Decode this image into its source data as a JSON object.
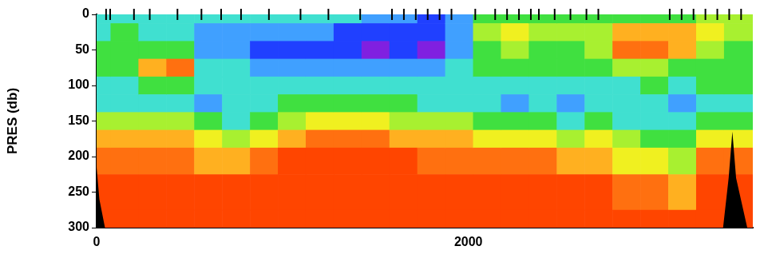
{
  "chart_data": {
    "type": "heatmap",
    "y_label": "PRES (db)",
    "xlim": [
      0,
      3530
    ],
    "xticks": [
      0,
      2000
    ],
    "ylim": [
      0,
      300
    ],
    "yticks": [
      0,
      50,
      100,
      150,
      200,
      250,
      300
    ],
    "grid": false,
    "zlim": [
      1,
      10
    ],
    "x": [
      0,
      150,
      300,
      450,
      600,
      750,
      900,
      1050,
      1200,
      1350,
      1500,
      1650,
      1800,
      1950,
      2100,
      2250,
      2400,
      2550,
      2700,
      2850,
      3000,
      3150,
      3300,
      3450
    ],
    "pres": [
      0,
      25,
      50,
      75,
      100,
      125,
      150,
      175,
      200,
      250,
      300
    ],
    "cells": [
      [
        4,
        4,
        5,
        5,
        4,
        4,
        6,
        8,
        9,
        10,
        10
      ],
      [
        4,
        5,
        5,
        5,
        4,
        4,
        6,
        8,
        9,
        10,
        10
      ],
      [
        4,
        4,
        5,
        8,
        5,
        4,
        6,
        8,
        9,
        10,
        10
      ],
      [
        4,
        4,
        5,
        9,
        5,
        4,
        6,
        8,
        9,
        10,
        10
      ],
      [
        4,
        3,
        3,
        4,
        4,
        3,
        5,
        7,
        8,
        10,
        10
      ],
      [
        4,
        3,
        3,
        4,
        4,
        4,
        4,
        6,
        8,
        10,
        10
      ],
      [
        4,
        3,
        2,
        3,
        4,
        4,
        5,
        7,
        9,
        10,
        10
      ],
      [
        4,
        3,
        2,
        3,
        4,
        5,
        6,
        8,
        10,
        10,
        10
      ],
      [
        4,
        3,
        2,
        3,
        4,
        5,
        7,
        9,
        10,
        10,
        10
      ],
      [
        4,
        2,
        2,
        3,
        4,
        5,
        7,
        9,
        10,
        10,
        10
      ],
      [
        3,
        2,
        1,
        3,
        4,
        5,
        7,
        9,
        10,
        10,
        10
      ],
      [
        3,
        2,
        2,
        3,
        4,
        5,
        6,
        8,
        10,
        10,
        10
      ],
      [
        2,
        2,
        1,
        3,
        4,
        4,
        6,
        8,
        9,
        10,
        10
      ],
      [
        3,
        3,
        3,
        4,
        4,
        4,
        6,
        8,
        9,
        10,
        10
      ],
      [
        5,
        6,
        5,
        5,
        4,
        4,
        5,
        7,
        9,
        10,
        10
      ],
      [
        5,
        7,
        6,
        5,
        4,
        3,
        5,
        7,
        9,
        10,
        10
      ],
      [
        5,
        6,
        5,
        5,
        4,
        4,
        5,
        7,
        9,
        10,
        10
      ],
      [
        5,
        6,
        5,
        5,
        4,
        3,
        4,
        6,
        8,
        10,
        10
      ],
      [
        5,
        6,
        6,
        5,
        4,
        4,
        5,
        7,
        8,
        10,
        10
      ],
      [
        5,
        8,
        9,
        6,
        4,
        4,
        4,
        6,
        7,
        9,
        10
      ],
      [
        5,
        8,
        9,
        6,
        5,
        4,
        4,
        5,
        7,
        9,
        10
      ],
      [
        5,
        8,
        8,
        5,
        4,
        3,
        4,
        5,
        6,
        8,
        10
      ],
      [
        6,
        7,
        6,
        5,
        5,
        4,
        5,
        7,
        9,
        10,
        10
      ],
      [
        6,
        6,
        5,
        5,
        5,
        4,
        5,
        7,
        9,
        10,
        10
      ]
    ],
    "stations": [
      51,
      73,
      201,
      286,
      435,
      564,
      670,
      777,
      927,
      1097,
      1247,
      1418,
      1589,
      1653,
      1717,
      1781,
      1845,
      1909,
      2037,
      2144,
      2208,
      2272,
      2336,
      2379,
      2464,
      2549,
      2635,
      2699,
      3083,
      3147,
      3211,
      3275,
      3339,
      3403,
      3467
    ],
    "bottom": [
      {
        "x": [
          0,
          0,
          15,
          45
        ],
        "pres": [
          300,
          215,
          260,
          300
        ]
      },
      {
        "x": [
          3370,
          3400,
          3420,
          3440,
          3500
        ],
        "pres": [
          300,
          230,
          165,
          230,
          300
        ]
      }
    ]
  }
}
